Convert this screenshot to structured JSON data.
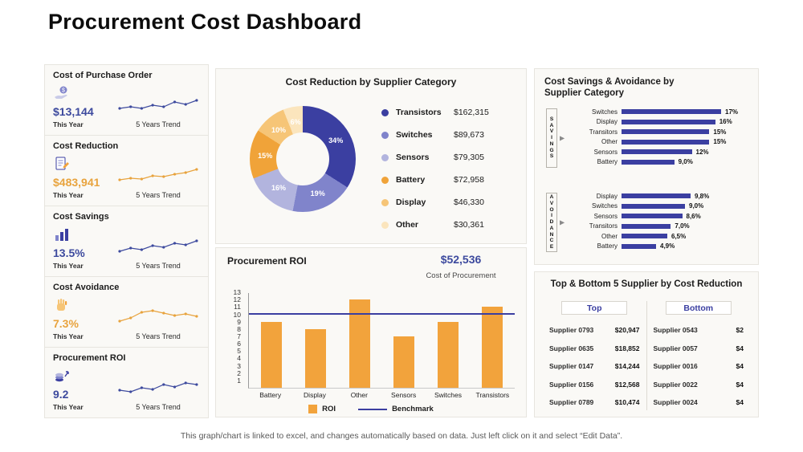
{
  "page": {
    "title": "Procurement Cost Dashboard",
    "footer": "This graph/chart is linked to excel, and changes automatically based on data. Just left click on it and select “Edit Data”."
  },
  "colors": {
    "indigo": "#3b3fa1",
    "purple_mid": "#8084cb",
    "purple_light": "#b2b4de",
    "orange": "#f2a33c",
    "orange_light": "#f6c577",
    "cream": "#fbe5bd",
    "value_blue": "#3d4a9e",
    "value_orange": "#e8a33d"
  },
  "kpis": [
    {
      "title": "Cost of Purchase Order",
      "value": "$13,144",
      "value_color": "#3d4a9e",
      "period_label": "This Year",
      "trend_label": "5 Years Trend",
      "trend_color": "#3d4a9e",
      "icon": "purchase-order-icon"
    },
    {
      "title": "Cost Reduction",
      "value": "$483,941",
      "value_color": "#e8a33d",
      "period_label": "This Year",
      "trend_label": "5 Years Trend",
      "trend_color": "#e8a33d",
      "icon": "cost-reduction-icon"
    },
    {
      "title": "Cost Savings",
      "value": "13.5%",
      "value_color": "#3d4a9e",
      "period_label": "This Year",
      "trend_label": "5 Years Trend",
      "trend_color": "#3d4a9e",
      "icon": "cost-savings-icon"
    },
    {
      "title": "Cost Avoidance",
      "value": "7.3%",
      "value_color": "#e8a33d",
      "period_label": "This Year",
      "trend_label": "5 Years Trend",
      "trend_color": "#e8a33d",
      "icon": "cost-avoidance-icon"
    },
    {
      "title": "Procurement ROI",
      "value": "9.2",
      "value_color": "#3d4a9e",
      "period_label": "This Year",
      "trend_label": "5 Years Trend",
      "trend_color": "#3d4a9e",
      "icon": "procurement-roi-icon"
    }
  ],
  "sa_panel": {
    "title": "Cost Savings & Avoidance by Supplier Category"
  },
  "table": {
    "title": "Top & Bottom 5 Supplier by Cost Reduction",
    "top_header": "Top",
    "bottom_header": "Bottom",
    "top_rows": [
      {
        "supplier": "Supplier 0793",
        "value": "$20,947"
      },
      {
        "supplier": "Supplier 0635",
        "value": "$18,852"
      },
      {
        "supplier": "Supplier 0147",
        "value": "$14,244"
      },
      {
        "supplier": "Supplier 0156",
        "value": "$12,568"
      },
      {
        "supplier": "Supplier 0789",
        "value": "$10,474"
      }
    ],
    "bottom_rows": [
      {
        "supplier": "Supplier 0543",
        "value": "$2"
      },
      {
        "supplier": "Supplier 0057",
        "value": "$4"
      },
      {
        "supplier": "Supplier 0016",
        "value": "$4"
      },
      {
        "supplier": "Supplier 0022",
        "value": "$4"
      },
      {
        "supplier": "Supplier 0024",
        "value": "$4"
      }
    ]
  },
  "chart_data": [
    {
      "id": "cost-reduction-by-supplier-category",
      "type": "pie",
      "title": "Cost Reduction by Supplier Category",
      "legend_position": "right",
      "segments": [
        {
          "label": "Transistors",
          "amount": 162315,
          "amount_label": "$162,315",
          "pct": 34,
          "pct_label": "34%",
          "color": "#3b3fa1"
        },
        {
          "label": "Switches",
          "amount": 89673,
          "amount_label": "$89,673",
          "pct": 19,
          "pct_label": "19%",
          "color": "#8084cb"
        },
        {
          "label": "Sensors",
          "amount": 79305,
          "amount_label": "$79,305",
          "pct": 16,
          "pct_label": "16%",
          "color": "#b2b4de"
        },
        {
          "label": "Battery",
          "amount": 72958,
          "amount_label": "$72,958",
          "pct": 15,
          "pct_label": "15%",
          "color": "#f0a339"
        },
        {
          "label": "Display",
          "amount": 46330,
          "amount_label": "$46,330",
          "pct": 10,
          "pct_label": "10%",
          "color": "#f6c577"
        },
        {
          "label": "Other",
          "amount": 30361,
          "amount_label": "$30,361",
          "pct": 6,
          "pct_label": "6%",
          "color": "#fbe5bd"
        }
      ]
    },
    {
      "id": "procurement-roi",
      "type": "bar",
      "title": "Procurement ROI",
      "highlight_value": "$52,536",
      "highlight_label": "Cost of Procurement",
      "categories": [
        "Battery",
        "Display",
        "Other",
        "Sensors",
        "Switches",
        "Transistors"
      ],
      "values": [
        9,
        8,
        12,
        7,
        9,
        11
      ],
      "benchmark": 10,
      "ylim": [
        0,
        13
      ],
      "yticks": [
        1,
        2,
        3,
        4,
        5,
        6,
        7,
        8,
        9,
        10,
        11,
        12,
        13
      ],
      "legend": [
        "ROI",
        "Benchmark"
      ],
      "legend_position": "bottom",
      "grid": false,
      "bar_color": "#f2a33c",
      "benchmark_color": "#3b3fa1"
    },
    {
      "id": "cost-savings-by-supplier-category",
      "type": "hbar",
      "group_label": "SAVINGS",
      "categories": [
        "Switches",
        "Display",
        "Transitors",
        "Other",
        "Sensors",
        "Battery"
      ],
      "values": [
        17,
        16,
        15,
        15,
        12,
        9
      ],
      "value_labels": [
        "17%",
        "16%",
        "15%",
        "15%",
        "12%",
        "9,0%"
      ],
      "bar_color": "#3b3fa1"
    },
    {
      "id": "cost-avoidance-by-supplier-category",
      "type": "hbar",
      "group_label": "AVOIDANCE",
      "categories": [
        "Display",
        "Switches",
        "Sensors",
        "Transitors",
        "Other",
        "Battery"
      ],
      "values": [
        9.8,
        9.0,
        8.6,
        7.0,
        6.5,
        4.9
      ],
      "value_labels": [
        "9,8%",
        "9,0%",
        "8,6%",
        "7,0%",
        "6,5%",
        "4,9%"
      ],
      "bar_color": "#3b3fa1"
    }
  ]
}
